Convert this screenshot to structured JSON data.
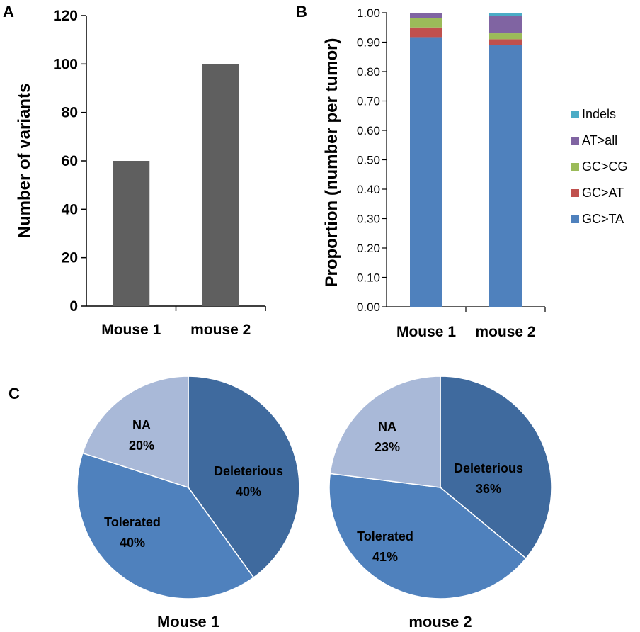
{
  "panels": {
    "a_letter": "A",
    "b_letter": "B",
    "c_letter": "C"
  },
  "chart_data": [
    {
      "type": "bar",
      "panel": "A",
      "categories": [
        "Mouse 1",
        "mouse 2"
      ],
      "values": [
        60,
        100
      ],
      "ylabel": "Number of variants",
      "ylim": [
        0,
        120
      ],
      "yticks": [
        "0",
        "20",
        "40",
        "60",
        "80",
        "100",
        "120"
      ],
      "color": "#5f5f5f"
    },
    {
      "type": "bar",
      "stacked": true,
      "panel": "B",
      "categories": [
        "Mouse 1",
        "mouse 2"
      ],
      "ylabel": "Proportion (number per tumor)",
      "ylim": [
        0,
        1
      ],
      "yticks": [
        "0.00",
        "0.10",
        "0.20",
        "0.30",
        "0.40",
        "0.50",
        "0.60",
        "0.70",
        "0.80",
        "0.90",
        "1.00"
      ],
      "legend_position": "right",
      "series": [
        {
          "name": "GC>TA",
          "color": "#4f81bd",
          "values": [
            0.917,
            0.89
          ]
        },
        {
          "name": "GC>AT",
          "color": "#c0504d",
          "values": [
            0.033,
            0.02
          ]
        },
        {
          "name": "GC>CG",
          "color": "#9bbb59",
          "values": [
            0.033,
            0.02
          ]
        },
        {
          "name": "AT>all",
          "color": "#8064a2",
          "values": [
            0.017,
            0.06
          ]
        },
        {
          "name": "Indels",
          "color": "#4bacc6",
          "values": [
            0,
            0.01
          ]
        }
      ]
    },
    {
      "type": "pie",
      "panel": "C",
      "title": "Mouse 1",
      "slices": [
        {
          "name": "Deleterious",
          "percent": "40%",
          "value": 40,
          "color": "#3f6a9e"
        },
        {
          "name": "Tolerated",
          "percent": "40%",
          "value": 40,
          "color": "#4f81bd"
        },
        {
          "name": "NA",
          "percent": "20%",
          "value": 20,
          "color": "#a9b9d8"
        }
      ]
    },
    {
      "type": "pie",
      "panel": "C",
      "title": "mouse 2",
      "slices": [
        {
          "name": "Deleterious",
          "percent": "36%",
          "value": 36,
          "color": "#3f6a9e"
        },
        {
          "name": "Tolerated",
          "percent": "41%",
          "value": 41,
          "color": "#4f81bd"
        },
        {
          "name": "NA",
          "percent": "23%",
          "value": 23,
          "color": "#a9b9d8"
        }
      ]
    }
  ]
}
